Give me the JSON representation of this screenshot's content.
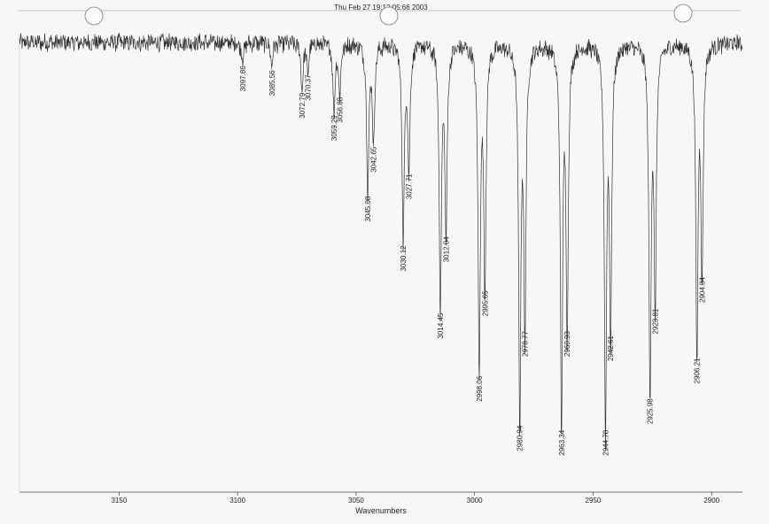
{
  "header": {
    "timestamp": "Thu Feb 27 19:1?:05:66 2003"
  },
  "chart_data": {
    "type": "line",
    "title": "",
    "xlabel": "Wavenumbers",
    "ylabel": "",
    "xlim": [
      3192,
      2887
    ],
    "x_ticks": [
      3150,
      3100,
      3050,
      3000,
      2950,
      2900
    ],
    "x_tick_labels": [
      "3150",
      "3100",
      "3050",
      "3000",
      "2950",
      "2900"
    ],
    "grid": false,
    "legend": "none",
    "line_color": "#333333",
    "y_relative": "transmittance (baseline = 1.0)",
    "peaks": [
      {
        "x": 3097.86,
        "label": "3097.86",
        "depth": 0.04
      },
      {
        "x": 3085.56,
        "label": "3085.56",
        "depth": 0.05
      },
      {
        "x": 3072.79,
        "label": "3072.79",
        "depth": 0.1
      },
      {
        "x": 3070.37,
        "label": "3070.37",
        "depth": 0.06
      },
      {
        "x": 3059.29,
        "label": "3059.29",
        "depth": 0.15
      },
      {
        "x": 3056.88,
        "label": "3056.88",
        "depth": 0.11
      },
      {
        "x": 3045.08,
        "label": "3045.08",
        "depth": 0.33
      },
      {
        "x": 3042.65,
        "label": "3042.65",
        "depth": 0.22
      },
      {
        "x": 3030.12,
        "label": "3030.12",
        "depth": 0.44
      },
      {
        "x": 3027.71,
        "label": "3027.71",
        "depth": 0.28
      },
      {
        "x": 3014.45,
        "label": "3014.45",
        "depth": 0.59
      },
      {
        "x": 3012.04,
        "label": "3012.04",
        "depth": 0.42
      },
      {
        "x": 2998.06,
        "label": "2998.06",
        "depth": 0.73
      },
      {
        "x": 2995.65,
        "label": "2995.65",
        "depth": 0.54
      },
      {
        "x": 2980.94,
        "label": "2980.94",
        "depth": 0.84
      },
      {
        "x": 2978.77,
        "label": "2978.77",
        "depth": 0.63
      },
      {
        "x": 2963.34,
        "label": "2963.34",
        "depth": 0.85
      },
      {
        "x": 2960.93,
        "label": "2960.93",
        "depth": 0.63
      },
      {
        "x": 2944.78,
        "label": "2944.78",
        "depth": 0.85
      },
      {
        "x": 2942.61,
        "label": "2942.61",
        "depth": 0.64
      },
      {
        "x": 2925.98,
        "label": "2925.98",
        "depth": 0.78
      },
      {
        "x": 2923.81,
        "label": "2923.81",
        "depth": 0.58
      },
      {
        "x": 2906.21,
        "label": "2906.21",
        "depth": 0.69
      },
      {
        "x": 2904.04,
        "label": "2904.04",
        "depth": 0.51
      }
    ]
  }
}
